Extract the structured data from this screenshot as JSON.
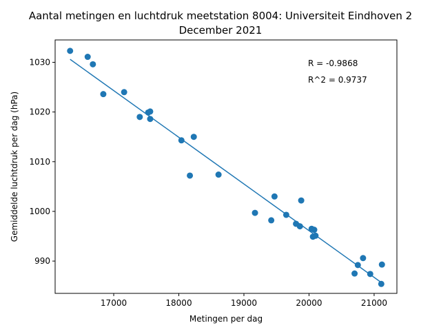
{
  "chart_data": {
    "type": "scatter",
    "title_line1": "Aantal metingen en luchtdruk meetstation 8004: Universiteit Eindhoven 2",
    "title_line2": "December 2021",
    "xlabel": "Metingen per dag",
    "ylabel": "Gemiddelde luchtdruk per dag (hPa)",
    "xlim": [
      16100,
      21350
    ],
    "ylim": [
      983.5,
      1034.5
    ],
    "xticks": [
      17000,
      18000,
      19000,
      20000,
      21000
    ],
    "yticks": [
      990,
      1000,
      1010,
      1020,
      1030
    ],
    "grid": false,
    "legend": "none",
    "annotations": [
      "R = -0.9868",
      "R^2 = 0.9737"
    ],
    "point_color": "#1f77b4",
    "line_color": "#1f77b4",
    "points": [
      {
        "x": 16330,
        "y": 1032.3
      },
      {
        "x": 16600,
        "y": 1031.1
      },
      {
        "x": 16680,
        "y": 1029.6
      },
      {
        "x": 16840,
        "y": 1023.6
      },
      {
        "x": 17160,
        "y": 1024.0
      },
      {
        "x": 17400,
        "y": 1019.0
      },
      {
        "x": 17530,
        "y": 1019.9
      },
      {
        "x": 17560,
        "y": 1020.1
      },
      {
        "x": 17560,
        "y": 1018.6
      },
      {
        "x": 18040,
        "y": 1014.3
      },
      {
        "x": 18170,
        "y": 1007.2
      },
      {
        "x": 18230,
        "y": 1015.0
      },
      {
        "x": 18610,
        "y": 1007.4
      },
      {
        "x": 19170,
        "y": 999.7
      },
      {
        "x": 19420,
        "y": 998.2
      },
      {
        "x": 19470,
        "y": 1003.0
      },
      {
        "x": 19650,
        "y": 999.3
      },
      {
        "x": 19800,
        "y": 997.5
      },
      {
        "x": 19860,
        "y": 997.0
      },
      {
        "x": 19880,
        "y": 1002.2
      },
      {
        "x": 20040,
        "y": 996.5
      },
      {
        "x": 20080,
        "y": 996.3
      },
      {
        "x": 20060,
        "y": 994.9
      },
      {
        "x": 20100,
        "y": 995.1
      },
      {
        "x": 20700,
        "y": 987.5
      },
      {
        "x": 20750,
        "y": 989.2
      },
      {
        "x": 20830,
        "y": 990.6
      },
      {
        "x": 20940,
        "y": 987.4
      },
      {
        "x": 21110,
        "y": 985.4
      },
      {
        "x": 21120,
        "y": 989.3
      }
    ],
    "fit": {
      "x": [
        16330,
        21120
      ],
      "y": [
        1030.6,
        985.6
      ]
    }
  }
}
